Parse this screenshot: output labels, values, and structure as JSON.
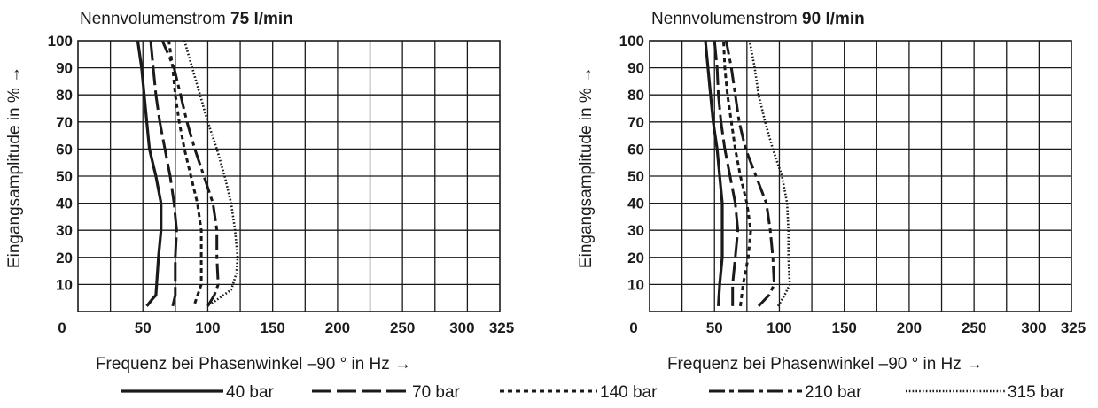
{
  "styles": {
    "40 bar": "solid",
    "70 bar": "long-dash",
    "140 bar": "dotted-dash",
    "210 bar": "dash-dot",
    "315 bar": "fine-dot"
  },
  "legend": [
    "40 bar",
    "70 bar",
    "140 bar",
    "210 bar",
    "315 bar"
  ],
  "chart_data": [
    {
      "type": "line",
      "title": "Nennvolumenstrom",
      "title_value": "75 l/min",
      "xlabel": "Frequenz bei Phasenwinkel –90 ° in Hz →",
      "ylabel": "Eingangsamplitude in % →",
      "xlim": [
        0,
        325
      ],
      "ylim": [
        0,
        100
      ],
      "xticks": [
        0,
        50,
        100,
        150,
        200,
        250,
        300,
        325
      ],
      "x_tick_labels": [
        "0",
        "50",
        "100",
        "150",
        "200",
        "250",
        "300",
        "325"
      ],
      "yticks": [
        10,
        20,
        30,
        40,
        50,
        60,
        70,
        80,
        90,
        100
      ],
      "y_tick_labels": [
        "10",
        "20",
        "30",
        "40",
        "50",
        "60",
        "70",
        "80",
        "90",
        "100"
      ],
      "grid": true,
      "series": [
        {
          "name": "40 bar",
          "points": [
            [
              53,
              2
            ],
            [
              58,
              5
            ],
            [
              60,
              6
            ],
            [
              62,
              20
            ],
            [
              64,
              30
            ],
            [
              64,
              40
            ],
            [
              60,
              50
            ],
            [
              55,
              60
            ],
            [
              53,
              70
            ],
            [
              51,
              80
            ],
            [
              49,
              90
            ],
            [
              46,
              100
            ]
          ]
        },
        {
          "name": "70 bar",
          "points": [
            [
              73,
              2
            ],
            [
              75,
              6
            ],
            [
              75,
              20
            ],
            [
              76,
              30
            ],
            [
              74,
              40
            ],
            [
              71,
              50
            ],
            [
              67,
              60
            ],
            [
              63,
              70
            ],
            [
              60,
              80
            ],
            [
              58,
              90
            ],
            [
              56,
              100
            ]
          ]
        },
        {
          "name": "140 bar",
          "points": [
            [
              90,
              3
            ],
            [
              95,
              10
            ],
            [
              95,
              30
            ],
            [
              92,
              40
            ],
            [
              87,
              50
            ],
            [
              82,
              60
            ],
            [
              78,
              70
            ],
            [
              75,
              80
            ],
            [
              73,
              90
            ],
            [
              70,
              100
            ]
          ]
        },
        {
          "name": "210 bar",
          "points": [
            [
              100,
              2
            ],
            [
              105,
              6
            ],
            [
              108,
              10
            ],
            [
              107,
              20
            ],
            [
              107,
              30
            ],
            [
              104,
              40
            ],
            [
              97,
              50
            ],
            [
              90,
              60
            ],
            [
              84,
              70
            ],
            [
              79,
              80
            ],
            [
              74,
              90
            ],
            [
              65,
              100
            ]
          ]
        },
        {
          "name": "315 bar",
          "points": [
            [
              103,
              3
            ],
            [
              118,
              8
            ],
            [
              122,
              14
            ],
            [
              123,
              20
            ],
            [
              121,
              30
            ],
            [
              118,
              40
            ],
            [
              113,
              50
            ],
            [
              107,
              60
            ],
            [
              100,
              70
            ],
            [
              94,
              80
            ],
            [
              88,
              90
            ],
            [
              82,
              100
            ]
          ]
        }
      ]
    },
    {
      "type": "line",
      "title": "Nennvolumenstrom",
      "title_value": "90 l/min",
      "xlabel": "Frequenz bei Phasenwinkel –90 ° in Hz →",
      "ylabel": "Eingangsamplitude in % →",
      "xlim": [
        0,
        325
      ],
      "ylim": [
        0,
        100
      ],
      "xticks": [
        0,
        50,
        100,
        150,
        200,
        250,
        300,
        325
      ],
      "x_tick_labels": [
        "0",
        "50",
        "100",
        "150",
        "200",
        "250",
        "300",
        "325"
      ],
      "yticks": [
        10,
        20,
        30,
        40,
        50,
        60,
        70,
        80,
        90,
        100
      ],
      "y_tick_labels": [
        "10",
        "20",
        "30",
        "40",
        "50",
        "60",
        "70",
        "80",
        "90",
        "100"
      ],
      "grid": true,
      "series": [
        {
          "name": "40 bar",
          "points": [
            [
              53,
              2
            ],
            [
              54,
              10
            ],
            [
              56,
              20
            ],
            [
              56,
              30
            ],
            [
              56,
              40
            ],
            [
              54,
              50
            ],
            [
              52,
              60
            ],
            [
              49,
              70
            ],
            [
              47,
              80
            ],
            [
              45,
              90
            ],
            [
              43,
              100
            ]
          ]
        },
        {
          "name": "70 bar",
          "points": [
            [
              64,
              2
            ],
            [
              64,
              10
            ],
            [
              66,
              20
            ],
            [
              68,
              30
            ],
            [
              66,
              40
            ],
            [
              62,
              50
            ],
            [
              58,
              60
            ],
            [
              55,
              70
            ],
            [
              53,
              80
            ],
            [
              52,
              90
            ],
            [
              50,
              100
            ]
          ]
        },
        {
          "name": "140 bar",
          "points": [
            [
              70,
              2
            ],
            [
              72,
              10
            ],
            [
              76,
              20
            ],
            [
              78,
              30
            ],
            [
              75,
              40
            ],
            [
              70,
              50
            ],
            [
              66,
              60
            ],
            [
              63,
              70
            ],
            [
              60,
              80
            ],
            [
              58,
              90
            ],
            [
              57,
              100
            ]
          ]
        },
        {
          "name": "210 bar",
          "points": [
            [
              84,
              2
            ],
            [
              92,
              6
            ],
            [
              96,
              10
            ],
            [
              95,
              20
            ],
            [
              93,
              30
            ],
            [
              90,
              40
            ],
            [
              82,
              50
            ],
            [
              74,
              60
            ],
            [
              69,
              70
            ],
            [
              66,
              80
            ],
            [
              63,
              90
            ],
            [
              59,
              100
            ]
          ]
        },
        {
          "name": "315 bar",
          "points": [
            [
              99,
              2
            ],
            [
              104,
              6
            ],
            [
              108,
              10
            ],
            [
              107,
              20
            ],
            [
              107,
              30
            ],
            [
              106,
              40
            ],
            [
              102,
              50
            ],
            [
              95,
              60
            ],
            [
              89,
              70
            ],
            [
              84,
              80
            ],
            [
              81,
              90
            ],
            [
              77,
              100
            ]
          ]
        }
      ]
    }
  ]
}
